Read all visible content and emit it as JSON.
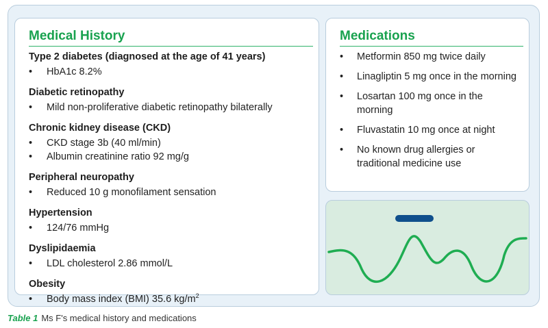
{
  "medical_history": {
    "title": "Medical History",
    "conditions": [
      {
        "name": "Type 2 diabetes (diagnosed at the age of 41 years)",
        "items": [
          "HbA1c 8.2%"
        ]
      },
      {
        "name": "Diabetic retinopathy",
        "items": [
          "Mild non-proliferative diabetic retinopathy bilaterally"
        ]
      },
      {
        "name": "Chronic kidney disease (CKD)",
        "items": [
          "CKD stage 3b (40 ml/min)",
          "Albumin creatinine ratio 92 mg/g"
        ]
      },
      {
        "name": "Peripheral neuropathy",
        "items": [
          "Reduced 10 g monofilament sensation"
        ]
      },
      {
        "name": "Hypertension",
        "items": [
          "124/76 mmHg"
        ]
      },
      {
        "name": "Dyslipidaemia",
        "items": [
          "LDL cholesterol 2.86 mmol/L"
        ]
      },
      {
        "name": "Obesity",
        "items": [
          "Body mass index (BMI) 35.6 kg/m",
          "2"
        ]
      }
    ]
  },
  "medications": {
    "title": "Medications",
    "items": [
      "Metformin 850 mg twice daily",
      "Linagliptin 5 mg once in the morning",
      "Losartan 100 mg once in the morning",
      "Fluvastatin 10 mg once at night",
      "No known drug allergies or traditional medicine use"
    ]
  },
  "caption": {
    "label": "Table 1",
    "text": "Ms F's medical history and medications"
  },
  "bullet": "•",
  "colors": {
    "accent_green": "#19a24f",
    "line_green": "#1fad52",
    "bar_blue": "#0f4f8c",
    "panel_border": "#b9cddd",
    "outer_bg": "#e8f1f8",
    "graph_bg": "#d9ece0"
  },
  "icons": {
    "illustration": "wave-line-illustration"
  }
}
